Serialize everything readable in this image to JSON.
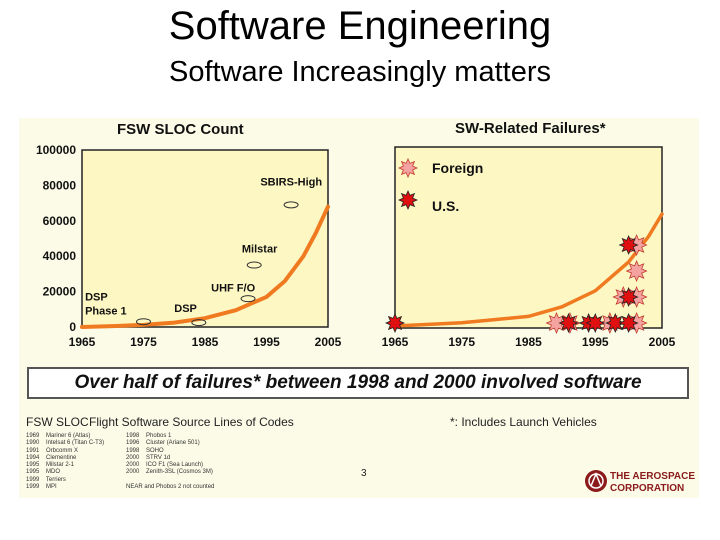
{
  "slide": {
    "title": "Software Engineering",
    "subtitle": "Software Increasingly matters"
  },
  "banner": {
    "text": "Over half of failures* between 1998 and 2000 involved software"
  },
  "footer": {
    "abbr": "FSW SLOC",
    "abbr_def": "Flight Software Source Lines of Codes",
    "note": "*: Includes Launch Vehicles",
    "page_number": "3",
    "logo_line1": "THE AEROSPACE",
    "logo_line2": "CORPORATION",
    "small_list_left": "1969    Mariner 6 (Atlas)\n1990    Intelsat 6 (Titan C-T3)\n1991    Orbcomm X\n1994    Clementine\n1995    Milstar 2-1\n1995    MDO\n1999    Terriers\n1999    MPI",
    "small_list_right": "1998    Phobos 1\n1996    Cluster (Ariane 501)\n1998    SOHO\n2000    STRV 1d\n2000    ICO F1 (Sea Launch)\n2000    Zenith-3SL (Cosmos 3M)\n\nNEAR and Phobos 2 not counted"
  },
  "chart_data": [
    {
      "type": "line",
      "title": "FSW SLOC Count",
      "xlabel": "",
      "ylabel": "",
      "xlim": [
        1965,
        2005
      ],
      "ylim": [
        0,
        100000
      ],
      "xticks": [
        1965,
        1975,
        1985,
        1995,
        2005
      ],
      "yticks": [
        0,
        20000,
        40000,
        60000,
        80000,
        100000
      ],
      "series": [
        {
          "color": "#f07a20",
          "x": [
            1965,
            1970,
            1975,
            1980,
            1985,
            1990,
            1995,
            1998,
            2001,
            2003,
            2005
          ],
          "y": [
            0,
            500,
            1200,
            2500,
            5000,
            9500,
            17000,
            26000,
            40000,
            53000,
            68000
          ]
        }
      ],
      "annotations": [
        {
          "text": "DSP",
          "x": 1965.5,
          "y": 15000,
          "marker_x": 1975,
          "marker_y": 3000
        },
        {
          "text": "Phase 1",
          "x": 1965.5,
          "y": 7000
        },
        {
          "text": "DSP",
          "x": 1980,
          "y": 8500,
          "marker_x": 1984,
          "marker_y": 2500
        },
        {
          "text": "UHF F/O",
          "x": 1986,
          "y": 20000,
          "marker_x": 1992,
          "marker_y": 16000
        },
        {
          "text": "Milstar",
          "x": 1991,
          "y": 42000,
          "marker_x": 1993,
          "marker_y": 35000
        },
        {
          "text": "SBIRS-High",
          "x": 1994,
          "y": 80000,
          "marker_x": 1999,
          "marker_y": 69000
        }
      ],
      "grid": false
    },
    {
      "type": "scatter",
      "title": "SW-Related Failures*",
      "xlim": [
        1965,
        2005
      ],
      "xticks": [
        1965,
        1975,
        1985,
        1995,
        2005
      ],
      "legend": {
        "position": "top-left",
        "entries": [
          "Foreign",
          "U.S."
        ]
      },
      "series": [
        {
          "name": "Foreign",
          "color": "#f4a3a0",
          "x": [
            1988,
            1990,
            1996,
            1998,
            2000,
            2000,
            2000,
            2000
          ],
          "y": [
            1,
            1,
            1,
            2,
            1,
            2,
            3,
            4
          ]
        },
        {
          "name": "U.S.",
          "color": "#e01010",
          "x": [
            1965,
            1991,
            1994,
            1995,
            1998,
            2000,
            2000,
            2000
          ],
          "y": [
            1,
            1,
            1,
            1,
            1,
            1,
            2,
            4
          ]
        }
      ],
      "trend": {
        "color": "#f07a20",
        "x": [
          1965,
          1975,
          1985,
          1990,
          1995,
          2000,
          2003,
          2005
        ],
        "y": [
          0,
          0.1,
          0.3,
          0.6,
          1.1,
          2.0,
          2.8,
          3.5
        ]
      },
      "grid": false
    }
  ]
}
